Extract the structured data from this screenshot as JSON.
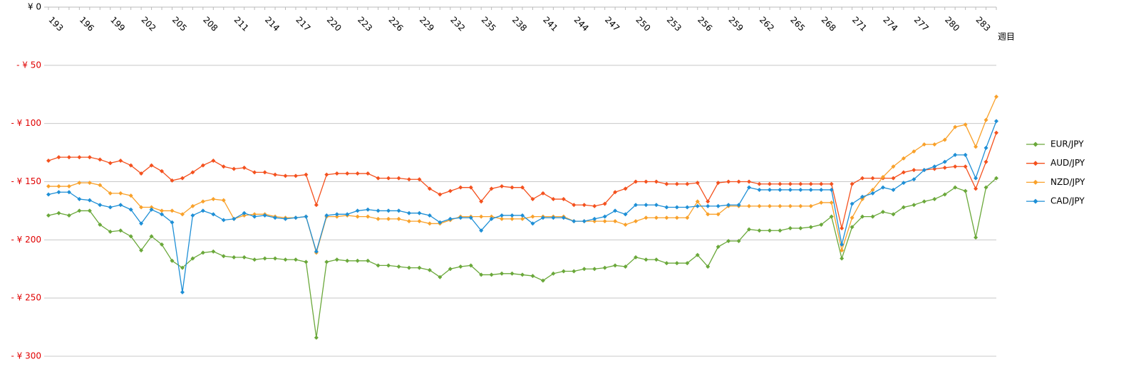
{
  "chart_data": {
    "type": "line",
    "x_label": "週目",
    "categories": [
      "193",
      null,
      null,
      "196",
      null,
      null,
      "199",
      null,
      null,
      "202",
      null,
      null,
      "205",
      null,
      null,
      "208",
      null,
      null,
      "211",
      null,
      null,
      "214",
      null,
      null,
      "217",
      null,
      null,
      "220",
      null,
      null,
      "223",
      null,
      null,
      "226",
      null,
      null,
      "229",
      null,
      null,
      "232",
      null,
      null,
      "235",
      null,
      null,
      "238",
      null,
      null,
      "241",
      null,
      null,
      "244",
      null,
      null,
      "247",
      null,
      null,
      "250",
      null,
      null,
      "253",
      null,
      null,
      "256",
      null,
      null,
      "259",
      null,
      null,
      "262",
      null,
      null,
      "265",
      null,
      null,
      "268",
      null,
      null,
      "271",
      null,
      null,
      "274",
      null,
      null,
      "277",
      null,
      null,
      "280",
      null,
      null,
      "283",
      null,
      null
    ],
    "series": [
      {
        "name": "EUR/JPY",
        "color": "#6aa83a",
        "values": [
          -179,
          -177,
          -179,
          -175,
          -175,
          -187,
          -193,
          -192,
          -197,
          -209,
          -197,
          -204,
          -218,
          -224,
          -216,
          -211,
          -210,
          -214,
          -215,
          -215,
          -217,
          -216,
          -216,
          -217,
          -217,
          -219,
          -284,
          -219,
          -217,
          -218,
          -218,
          -218,
          -222,
          -222,
          -223,
          -224,
          -224,
          -226,
          -232,
          -225,
          -223,
          -222,
          -230,
          -230,
          -229,
          -229,
          -230,
          -231,
          -235,
          -229,
          -227,
          -227,
          -225,
          -225,
          -224,
          -222,
          -223,
          -215,
          -217,
          -217,
          -220,
          -220,
          -220,
          -213,
          -223,
          -206,
          -201,
          -201,
          -191,
          -192,
          -192,
          -192,
          -190,
          -190,
          -189,
          -187,
          -180,
          -216,
          -189,
          -180,
          -180,
          -176,
          -178,
          -172,
          -170,
          -167,
          -165,
          -161,
          -155,
          -158,
          -198,
          -155,
          -147
        ]
      },
      {
        "name": "AUD/JPY",
        "color": "#f4511e",
        "values": [
          -132,
          -129,
          -129,
          -129,
          -129,
          -131,
          -134,
          -132,
          -136,
          -143,
          -136,
          -141,
          -149,
          -147,
          -142,
          -136,
          -132,
          -137,
          -139,
          -138,
          -142,
          -142,
          -144,
          -145,
          -145,
          -144,
          -170,
          -144,
          -143,
          -143,
          -143,
          -143,
          -147,
          -147,
          -147,
          -148,
          -148,
          -156,
          -161,
          -158,
          -155,
          -155,
          -167,
          -156,
          -154,
          -155,
          -155,
          -165,
          -160,
          -165,
          -165,
          -170,
          -170,
          -171,
          -169,
          -159,
          -156,
          -150,
          -150,
          -150,
          -152,
          -152,
          -152,
          -151,
          -167,
          -151,
          -150,
          -150,
          -150,
          -152,
          -152,
          -152,
          -152,
          -152,
          -152,
          -152,
          -152,
          -190,
          -152,
          -147,
          -147,
          -147,
          -147,
          -142,
          -140,
          -140,
          -139,
          -138,
          -137,
          -137,
          -156,
          -133,
          -108
        ]
      },
      {
        "name": "NZD/JPY",
        "color": "#f9a12a",
        "values": [
          -154,
          -154,
          -154,
          -151,
          -151,
          -153,
          -160,
          -160,
          -162,
          -172,
          -172,
          -175,
          -175,
          -178,
          -171,
          -167,
          -165,
          -166,
          -182,
          -179,
          -178,
          -178,
          -180,
          -181,
          -181,
          -180,
          -211,
          -180,
          -180,
          -179,
          -180,
          -180,
          -182,
          -182,
          -182,
          -184,
          -184,
          -186,
          -186,
          -183,
          -180,
          -180,
          -180,
          -180,
          -182,
          -182,
          -182,
          -180,
          -180,
          -180,
          -180,
          -184,
          -184,
          -184,
          -184,
          -184,
          -187,
          -184,
          -181,
          -181,
          -181,
          -181,
          -181,
          -167,
          -178,
          -178,
          -171,
          -171,
          -171,
          -171,
          -171,
          -171,
          -171,
          -171,
          -171,
          -168,
          -168,
          -209,
          -181,
          -165,
          -157,
          -146,
          -137,
          -130,
          -124,
          -118,
          -118,
          -114,
          -103,
          -101,
          -120,
          -97,
          -77
        ]
      },
      {
        "name": "CAD/JPY",
        "color": "#1e8fd6",
        "values": [
          -161,
          -159,
          -159,
          -165,
          -166,
          -170,
          -172,
          -170,
          -174,
          -186,
          -174,
          -178,
          -185,
          -245,
          -179,
          -175,
          -178,
          -183,
          -182,
          -177,
          -180,
          -179,
          -181,
          -182,
          -181,
          -180,
          -210,
          -179,
          -178,
          -178,
          -175,
          -174,
          -175,
          -175,
          -175,
          -177,
          -177,
          -179,
          -185,
          -182,
          -181,
          -181,
          -192,
          -182,
          -179,
          -179,
          -179,
          -186,
          -181,
          -181,
          -181,
          -184,
          -184,
          -182,
          -180,
          -175,
          -178,
          -170,
          -170,
          -170,
          -172,
          -172,
          -172,
          -171,
          -171,
          -171,
          -170,
          -170,
          -155,
          -157,
          -157,
          -157,
          -157,
          -157,
          -157,
          -157,
          -157,
          -204,
          -169,
          -163,
          -160,
          -155,
          -157,
          -151,
          -148,
          -140,
          -137,
          -133,
          -127,
          -127,
          -147,
          -121,
          -98
        ]
      }
    ],
    "ylim": [
      0,
      -300
    ],
    "yticks": [
      {
        "value": 0,
        "label": "¥ 0"
      },
      {
        "value": -50,
        "label": "- ¥ 50"
      },
      {
        "value": -100,
        "label": "- ¥ 100"
      },
      {
        "value": -150,
        "label": "- ¥ 150"
      },
      {
        "value": -200,
        "label": "- ¥ 200"
      },
      {
        "value": -250,
        "label": "- ¥ 250"
      },
      {
        "value": -300,
        "label": "- ¥ 300"
      }
    ],
    "negative_tick_color": "#e00000",
    "grid": true,
    "legend": "right"
  }
}
